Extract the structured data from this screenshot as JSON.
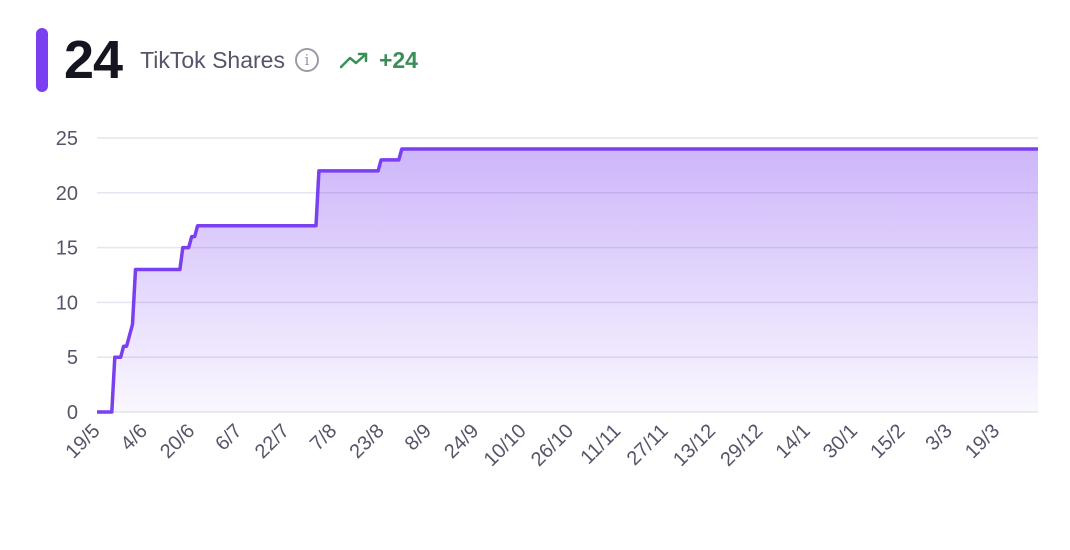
{
  "header": {
    "value": "24",
    "label": "TikTok Shares",
    "change": "+24",
    "accent_color": "#7b3ff2",
    "change_color": "#3a8f57",
    "info_icon": "info-icon",
    "trend_icon": "trend-up-icon"
  },
  "chart_data": {
    "type": "area",
    "title": "",
    "xlabel": "",
    "ylabel": "",
    "ylim": [
      0,
      25
    ],
    "yticks": [
      0,
      5,
      10,
      15,
      20,
      25
    ],
    "xtick_labels": [
      "19/5",
      "4/6",
      "20/6",
      "6/7",
      "22/7",
      "7/8",
      "23/8",
      "8/9",
      "24/9",
      "10/10",
      "26/10",
      "11/11",
      "27/11",
      "13/12",
      "29/12",
      "14/1",
      "30/1",
      "15/2",
      "3/3",
      "19/3"
    ],
    "grid": true,
    "legend": "none",
    "line_color": "#7b3ff2",
    "series": [
      {
        "values": [
          {
            "x": "19/5",
            "y": 0
          },
          {
            "x": "24/5",
            "y": 0
          },
          {
            "x": "25/5",
            "y": 5
          },
          {
            "x": "27/5",
            "y": 5
          },
          {
            "x": "28/5",
            "y": 6
          },
          {
            "x": "29/5",
            "y": 6
          },
          {
            "x": "31/5",
            "y": 8
          },
          {
            "x": "1/6",
            "y": 13
          },
          {
            "x": "16/6",
            "y": 13
          },
          {
            "x": "17/6",
            "y": 15
          },
          {
            "x": "19/6",
            "y": 15
          },
          {
            "x": "20/6",
            "y": 16
          },
          {
            "x": "21/6",
            "y": 16
          },
          {
            "x": "22/6",
            "y": 17
          },
          {
            "x": "1/8",
            "y": 17
          },
          {
            "x": "2/8",
            "y": 22
          },
          {
            "x": "22/8",
            "y": 22
          },
          {
            "x": "23/8",
            "y": 23
          },
          {
            "x": "29/8",
            "y": 23
          },
          {
            "x": "30/8",
            "y": 24
          },
          {
            "x": "2/4",
            "y": 24
          }
        ]
      }
    ]
  }
}
